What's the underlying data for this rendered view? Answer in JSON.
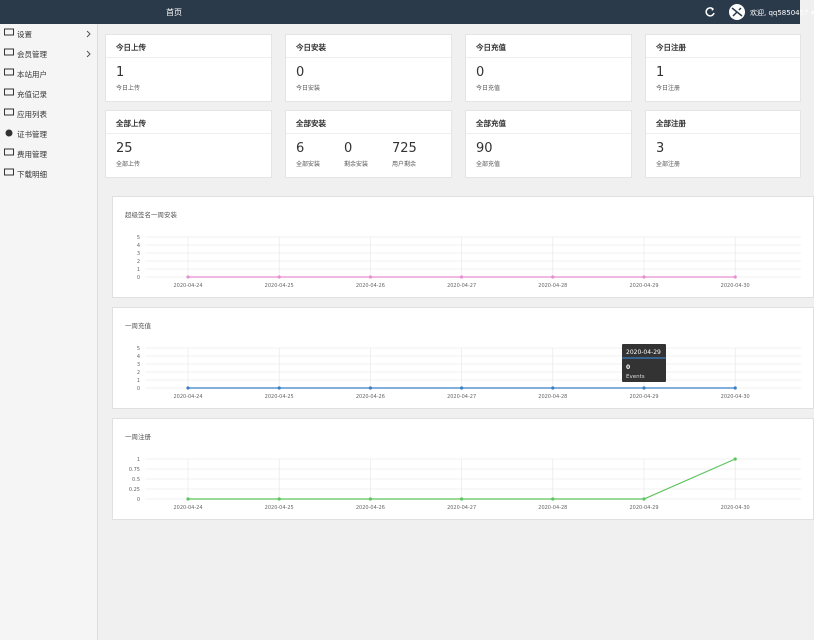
{
  "nav": {
    "home": "首页",
    "user": "欢迎, qq5850457"
  },
  "sidebar": [
    "设置",
    "会员管理",
    "本站用户",
    "充值记录",
    "应用列表",
    "证书管理",
    "费用管理",
    "下载明细"
  ],
  "cards": [
    {
      "title": "今日上传",
      "items": [
        {
          "value": 1,
          "label": "今日上传"
        }
      ]
    },
    {
      "title": "今日安装",
      "items": [
        {
          "value": 0,
          "label": "今日安装"
        }
      ]
    },
    {
      "title": "今日充值",
      "items": [
        {
          "value": 0,
          "label": "今日充值"
        }
      ]
    },
    {
      "title": "今日注册",
      "items": [
        {
          "value": 1,
          "label": "今日注册"
        }
      ]
    },
    {
      "title": "全部上传",
      "items": [
        {
          "value": 25,
          "label": "全部上传"
        }
      ]
    },
    {
      "title": "全部安装",
      "items": [
        {
          "value": 6,
          "label": "全部安装"
        },
        {
          "value": 0,
          "label": "剩余安装"
        },
        {
          "value": 725,
          "label": "用户剩余"
        }
      ]
    },
    {
      "title": "全部充值",
      "items": [
        {
          "value": 90,
          "label": "全部充值"
        }
      ]
    },
    {
      "title": "全部注册",
      "items": [
        {
          "value": 3,
          "label": "全部注册"
        }
      ]
    }
  ],
  "chart_data": [
    {
      "type": "line",
      "title": "超级签名一周安装",
      "x": [
        "2020-04-24",
        "2020-04-25",
        "2020-04-26",
        "2020-04-27",
        "2020-04-28",
        "2020-04-29",
        "2020-04-30"
      ],
      "series": [
        {
          "name": "Events",
          "color": "#e88fd0",
          "values": [
            0,
            0,
            0,
            0,
            0,
            0,
            0
          ]
        }
      ],
      "ylim": [
        0,
        5
      ],
      "yticks": [
        0,
        1,
        2,
        3,
        4,
        5
      ],
      "grid": true
    },
    {
      "type": "line",
      "title": "一周充值",
      "x": [
        "2020-04-24",
        "2020-04-25",
        "2020-04-26",
        "2020-04-27",
        "2020-04-28",
        "2020-04-29",
        "2020-04-30"
      ],
      "series": [
        {
          "name": "Events",
          "color": "#3a7fc4",
          "values": [
            0,
            0,
            0,
            0,
            0,
            0,
            0
          ]
        }
      ],
      "ylim": [
        0,
        5
      ],
      "yticks": [
        0,
        1,
        2,
        3,
        4,
        5
      ],
      "grid": true
    },
    {
      "type": "line",
      "title": "一周注册",
      "x": [
        "2020-04-24",
        "2020-04-25",
        "2020-04-26",
        "2020-04-27",
        "2020-04-28",
        "2020-04-29",
        "2020-04-30"
      ],
      "series": [
        {
          "name": "Events",
          "color": "#5cc45c",
          "values": [
            0,
            0,
            0,
            0,
            0,
            0,
            1
          ]
        }
      ],
      "ylim": [
        0,
        1
      ],
      "yticks": [
        0,
        0.25,
        0.5,
        0.75,
        1
      ],
      "grid": true
    }
  ]
}
